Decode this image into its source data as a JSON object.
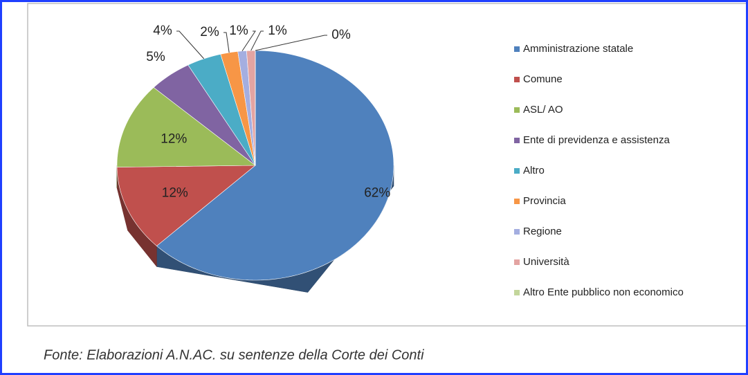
{
  "chart_data": {
    "type": "pie",
    "categories": [
      "Amministrazione statale",
      "Comune",
      "ASL/ AO",
      "Ente  di previdenza e assistenza",
      "Altro",
      "Provincia",
      "Regione",
      "Università",
      "Altro Ente pubblico non economico"
    ],
    "values": [
      62,
      12,
      12,
      5,
      4,
      2,
      1,
      1,
      0
    ],
    "value_labels": [
      "62%",
      "12%",
      "12%",
      "5%",
      "4%",
      "2%",
      "1%",
      "1%",
      "0%"
    ],
    "colors": [
      "#4f81bd",
      "#c0504d",
      "#9bbb59",
      "#8064a2",
      "#4bacc6",
      "#f79646",
      "#a4aee0",
      "#e3a4a2",
      "#c3d69b"
    ],
    "legend": "right",
    "caption": "Fonte: Elaborazioni A.N.AC. su sentenze della Corte dei Conti"
  }
}
